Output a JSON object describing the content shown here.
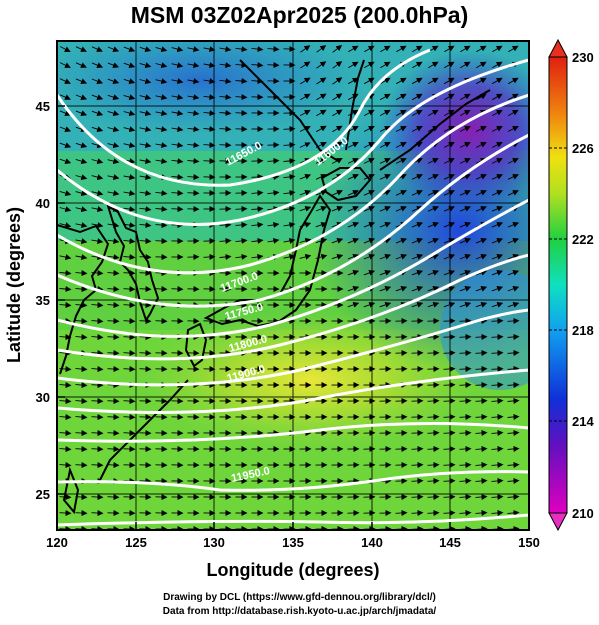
{
  "title": "MSM 03Z02Apr2025 (200.0hPa)",
  "x_axis": {
    "label": "Longitude (degrees)",
    "ticks": [
      "120",
      "125",
      "130",
      "135",
      "140",
      "145",
      "150"
    ]
  },
  "y_axis": {
    "label": "Latitude  (degrees)",
    "ticks": [
      "25",
      "30",
      "35",
      "40",
      "45"
    ]
  },
  "colorbar": {
    "labels": [
      "230",
      "226",
      "222",
      "218",
      "214",
      "210"
    ],
    "min": 210,
    "max": 230
  },
  "contour_labels": [
    "11600.0",
    "11650.0",
    "11700.0",
    "11750.0",
    "11800.0",
    "11900.0",
    "11950.0"
  ],
  "footer": {
    "line1": "Drawing by DCL (https://www.gfd-dennou.org/library/dcl/)",
    "line2": "Data from http://database.rish.kyoto-u.ac.jp/arch/jmadata/"
  }
}
